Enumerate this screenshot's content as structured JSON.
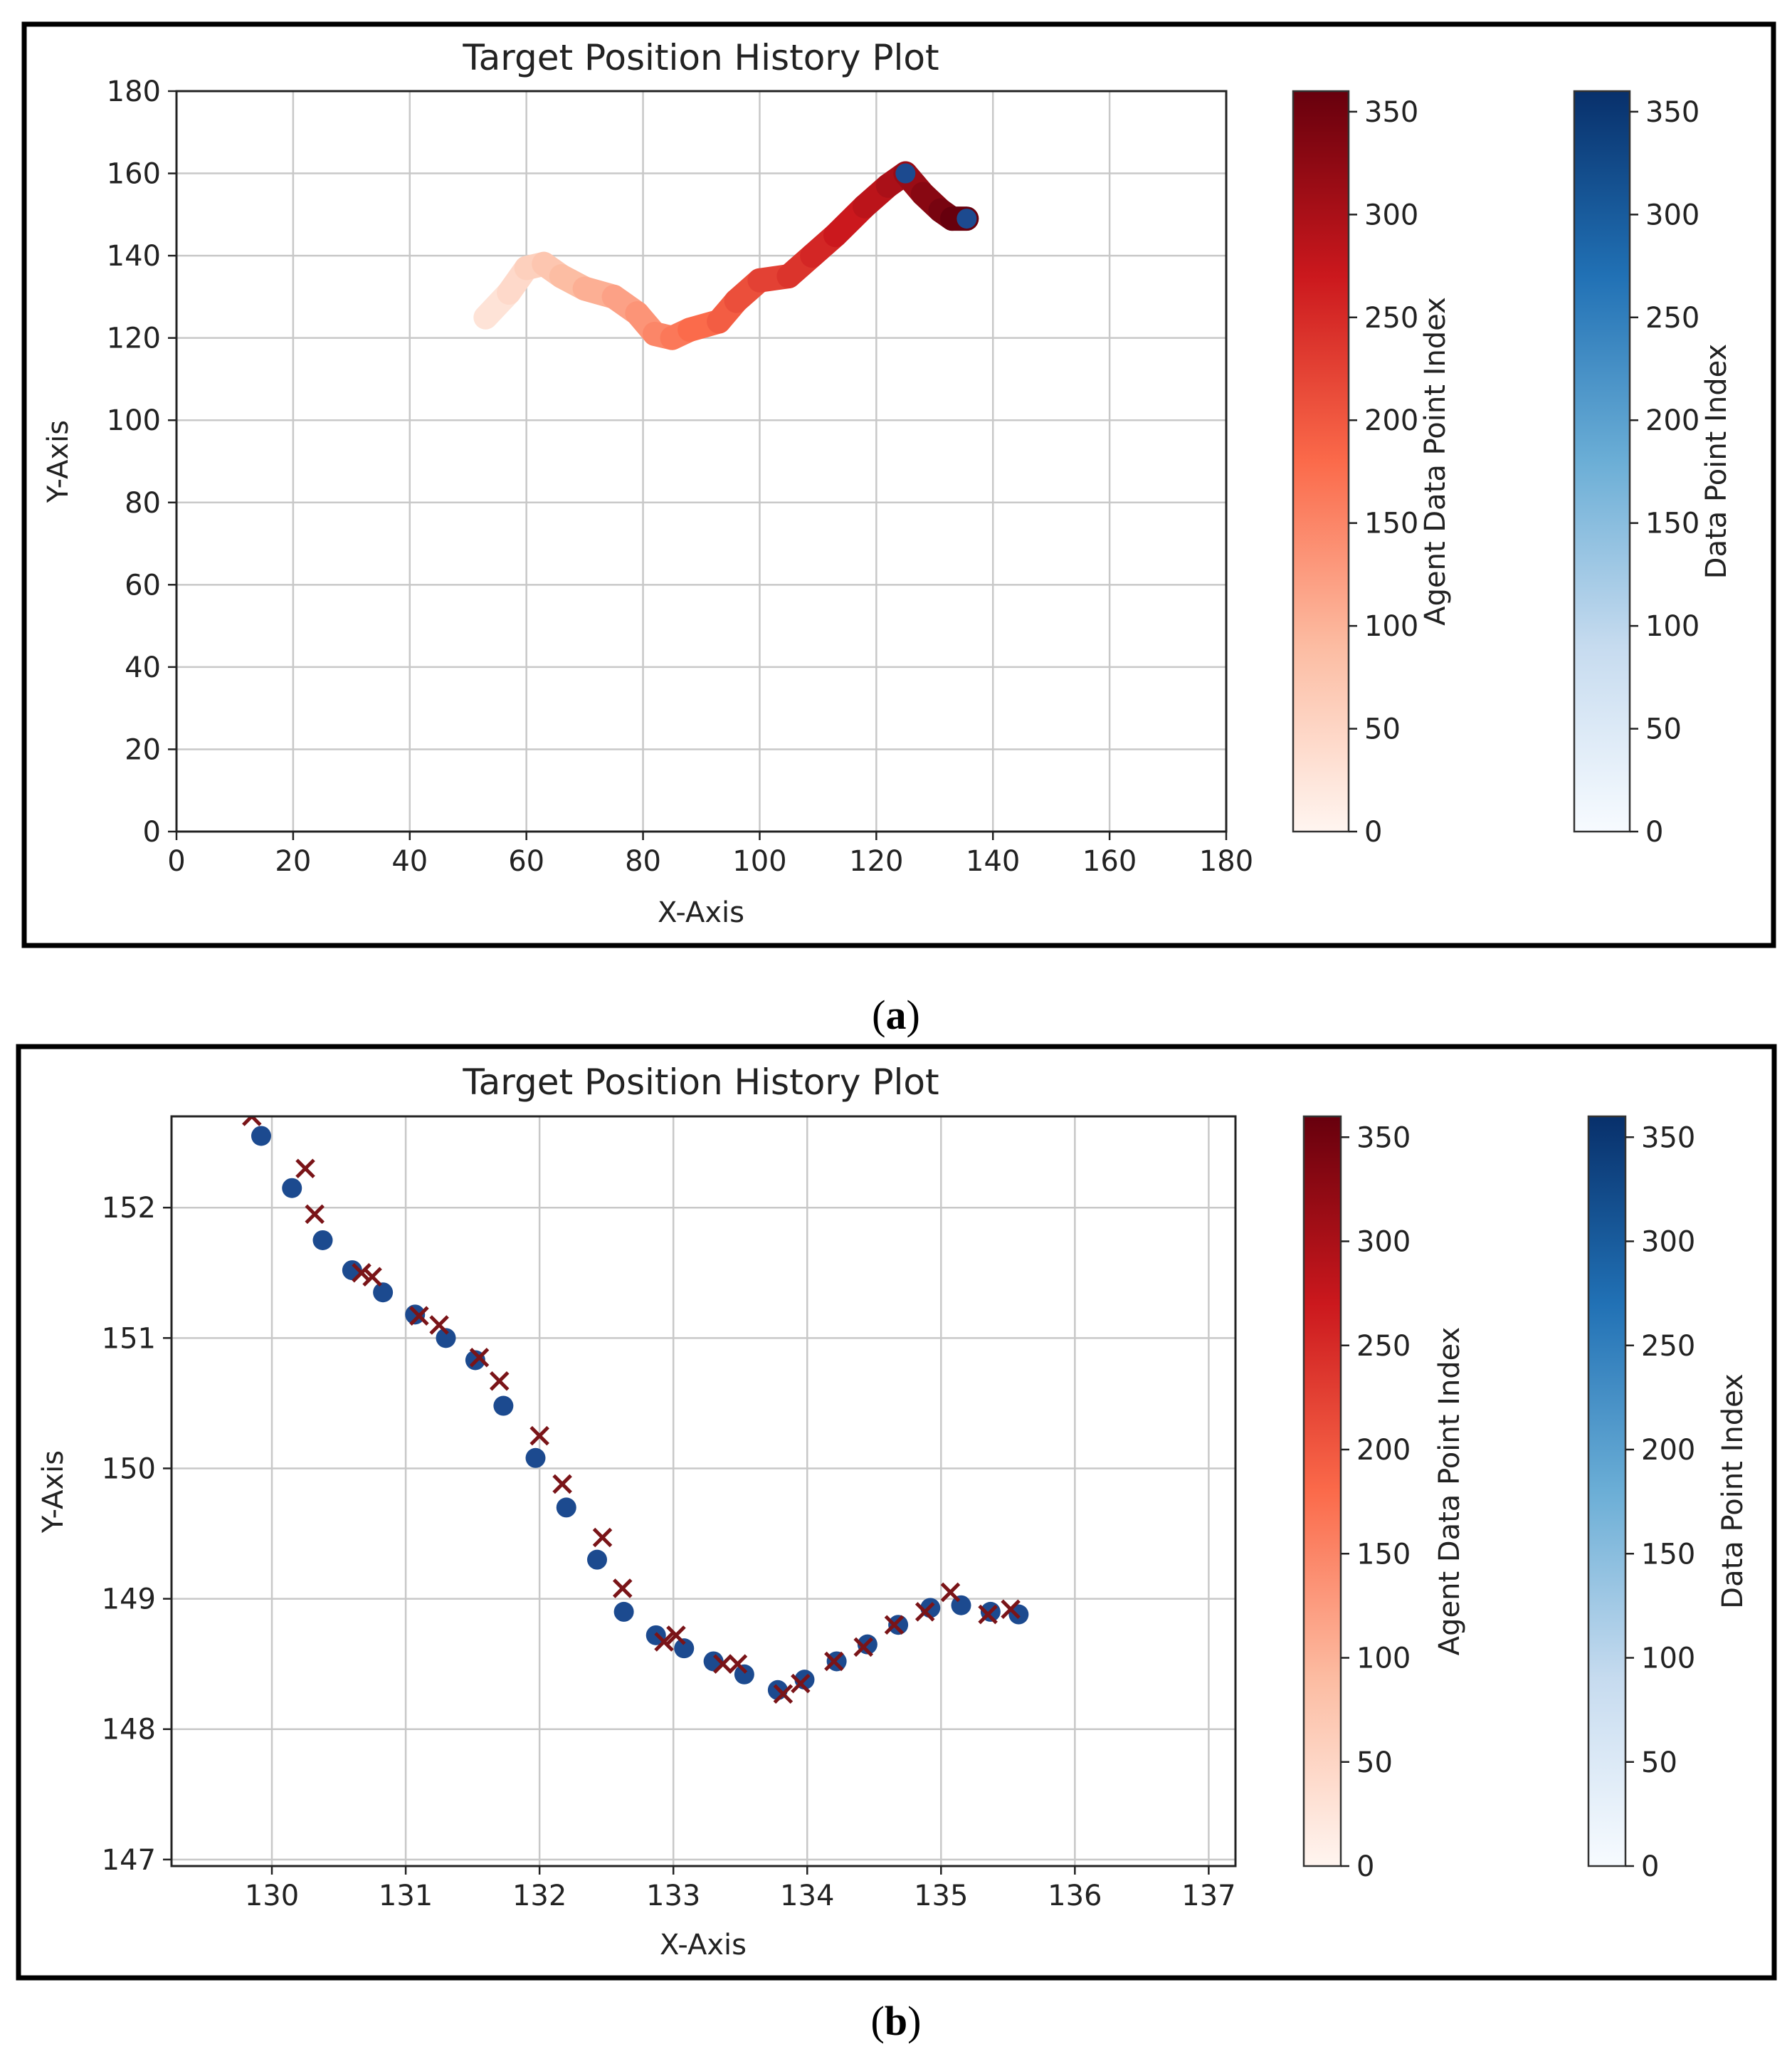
{
  "figure": {
    "caption_a": "(a)",
    "caption_b": "(b)",
    "caption_a_bold": "a",
    "caption_b_bold": "b"
  },
  "colors": {
    "agent_track": "#7a1418",
    "data_track": "#1c4a8f",
    "reds_stops": [
      "#fff5f0",
      "#fcbca2",
      "#fb6a4a",
      "#cb181d",
      "#67000d"
    ],
    "blues_stops": [
      "#f7fbff",
      "#c6dbef",
      "#6baed6",
      "#2171b5",
      "#08306b"
    ]
  },
  "chart_data": [
    {
      "type": "scatter",
      "id": "a",
      "title": "Target Position History Plot",
      "xlabel": "X-Axis",
      "ylabel": "Y-Axis",
      "xlim": [
        0,
        180
      ],
      "ylim": [
        0,
        180
      ],
      "xticks": [
        0,
        20,
        40,
        60,
        80,
        100,
        120,
        140,
        160,
        180
      ],
      "yticks": [
        0,
        20,
        40,
        60,
        80,
        100,
        120,
        140,
        160,
        180
      ],
      "xtick_labels": [
        "0",
        "20",
        "40",
        "60",
        "80",
        "100",
        "120",
        "140",
        "160",
        "180"
      ],
      "ytick_labels": [
        "0",
        "20",
        "40",
        "60",
        "80",
        "100",
        "120",
        "140",
        "160",
        "180"
      ],
      "grid": true,
      "trajectory_path": [
        [
          53,
          125
        ],
        [
          57,
          131
        ],
        [
          60,
          137
        ],
        [
          63,
          138
        ],
        [
          66,
          135
        ],
        [
          70,
          132
        ],
        [
          75,
          130
        ],
        [
          79,
          126
        ],
        [
          82,
          121
        ],
        [
          85,
          120
        ],
        [
          88,
          122
        ],
        [
          93,
          124
        ],
        [
          96,
          129
        ],
        [
          100,
          134
        ],
        [
          105,
          135
        ],
        [
          109,
          140
        ],
        [
          113,
          145
        ],
        [
          118,
          152
        ],
        [
          122,
          157
        ],
        [
          125,
          160
        ],
        [
          128,
          155
        ],
        [
          131,
          151
        ],
        [
          133,
          149
        ],
        [
          135.5,
          149
        ]
      ],
      "colorbars": [
        {
          "label": "Agent Data Point Index",
          "cmap": "Reds",
          "min": 0,
          "max": 360,
          "ticks": [
            0,
            50,
            100,
            150,
            200,
            250,
            300,
            350
          ],
          "tick_labels": [
            "0",
            "50",
            "100",
            "150",
            "200",
            "250",
            "300",
            "350"
          ]
        },
        {
          "label": "Data Point Index",
          "cmap": "Blues",
          "min": 0,
          "max": 360,
          "ticks": [
            0,
            50,
            100,
            150,
            200,
            250,
            300,
            350
          ],
          "tick_labels": [
            "0",
            "50",
            "100",
            "150",
            "200",
            "250",
            "300",
            "350"
          ]
        }
      ]
    },
    {
      "type": "scatter",
      "id": "b",
      "title": "Target Position History Plot",
      "xlabel": "X-Axis",
      "ylabel": "Y-Axis",
      "xlim": [
        129.25,
        137.2
      ],
      "ylim": [
        146.95,
        152.7
      ],
      "xticks": [
        130,
        131,
        132,
        133,
        134,
        135,
        136,
        137
      ],
      "yticks": [
        147,
        148,
        149,
        150,
        151,
        152
      ],
      "xtick_labels": [
        "130",
        "131",
        "132",
        "133",
        "134",
        "135",
        "136",
        "137"
      ],
      "ytick_labels": [
        "147",
        "148",
        "149",
        "150",
        "151",
        "152"
      ],
      "grid": true,
      "series": [
        {
          "name": "Data Point Index",
          "marker": "circle",
          "points": [
            [
              129.92,
              152.55
            ],
            [
              130.15,
              152.15
            ],
            [
              130.38,
              151.75
            ],
            [
              130.6,
              151.52
            ],
            [
              130.83,
              151.35
            ],
            [
              131.07,
              151.18
            ],
            [
              131.3,
              151.0
            ],
            [
              131.52,
              150.83
            ],
            [
              131.73,
              150.48
            ],
            [
              131.97,
              150.08
            ],
            [
              132.2,
              149.7
            ],
            [
              132.43,
              149.3
            ],
            [
              132.63,
              148.9
            ],
            [
              132.87,
              148.72
            ],
            [
              133.08,
              148.62
            ],
            [
              133.3,
              148.52
            ],
            [
              133.53,
              148.42
            ],
            [
              133.78,
              148.3
            ],
            [
              133.98,
              148.38
            ],
            [
              134.22,
              148.52
            ],
            [
              134.45,
              148.65
            ],
            [
              134.68,
              148.8
            ],
            [
              134.92,
              148.93
            ],
            [
              135.15,
              148.95
            ],
            [
              135.37,
              148.9
            ],
            [
              135.58,
              148.88
            ]
          ]
        },
        {
          "name": "Agent Data Point Index",
          "marker": "x",
          "points": [
            [
              129.85,
              152.7
            ],
            [
              130.25,
              152.3
            ],
            [
              130.32,
              151.95
            ],
            [
              130.67,
              151.5
            ],
            [
              130.75,
              151.47
            ],
            [
              131.1,
              151.17
            ],
            [
              131.25,
              151.1
            ],
            [
              131.55,
              150.85
            ],
            [
              131.7,
              150.67
            ],
            [
              132.0,
              150.25
            ],
            [
              132.17,
              149.88
            ],
            [
              132.47,
              149.47
            ],
            [
              132.62,
              149.08
            ],
            [
              132.93,
              148.67
            ],
            [
              133.02,
              148.72
            ],
            [
              133.37,
              148.5
            ],
            [
              133.48,
              148.5
            ],
            [
              133.82,
              148.27
            ],
            [
              133.95,
              148.35
            ],
            [
              134.2,
              148.52
            ],
            [
              134.42,
              148.63
            ],
            [
              134.65,
              148.8
            ],
            [
              134.88,
              148.9
            ],
            [
              135.07,
              149.05
            ],
            [
              135.35,
              148.88
            ],
            [
              135.52,
              148.92
            ]
          ]
        }
      ],
      "colorbars": [
        {
          "label": "Agent Data Point Index",
          "cmap": "Reds",
          "min": 0,
          "max": 360,
          "ticks": [
            0,
            50,
            100,
            150,
            200,
            250,
            300,
            350
          ],
          "tick_labels": [
            "0",
            "50",
            "100",
            "150",
            "200",
            "250",
            "300",
            "350"
          ]
        },
        {
          "label": "Data Point Index",
          "cmap": "Blues",
          "min": 0,
          "max": 360,
          "ticks": [
            0,
            50,
            100,
            150,
            200,
            250,
            300,
            350
          ],
          "tick_labels": [
            "0",
            "50",
            "100",
            "150",
            "200",
            "250",
            "300",
            "350"
          ]
        }
      ]
    }
  ]
}
